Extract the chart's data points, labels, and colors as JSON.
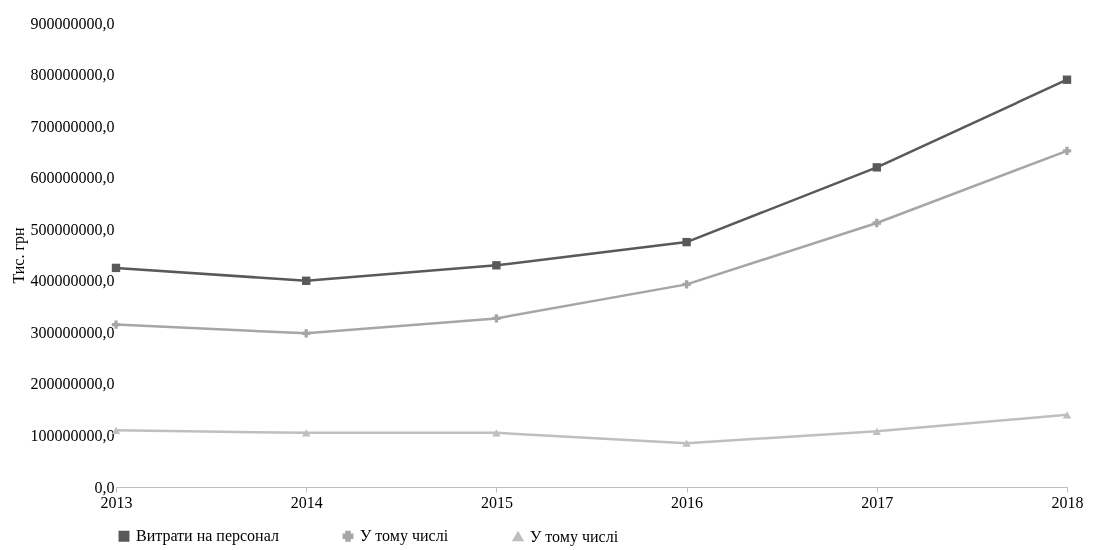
{
  "chart_data": {
    "type": "line",
    "ylabel": "Тис. грн",
    "categories": [
      "2013",
      "2014",
      "2015",
      "2016",
      "2017",
      "2018"
    ],
    "series": [
      {
        "name": "Витрати на персонал",
        "color": "#595959",
        "marker": "square",
        "values": [
          425000000,
          400000000,
          430000000,
          475000000,
          620000000,
          790000000
        ]
      },
      {
        "name": "У тому числі",
        "color": "#a6a6a6",
        "marker": "cross",
        "values": [
          315000000,
          298000000,
          327000000,
          393000000,
          512000000,
          652000000
        ]
      },
      {
        "name": "У тому числі",
        "color": "#bfbfbf",
        "marker": "triangle",
        "values": [
          110000000,
          105000000,
          105000000,
          85000000,
          108000000,
          140000000
        ]
      }
    ],
    "ylim": [
      0,
      900000000
    ],
    "yticks": [
      {
        "value": 0,
        "label": "0,0"
      },
      {
        "value": 100000000,
        "label": "100000000,0"
      },
      {
        "value": 200000000,
        "label": "200000000,0"
      },
      {
        "value": 300000000,
        "label": "300000000,0"
      },
      {
        "value": 400000000,
        "label": "400000000,0"
      },
      {
        "value": 500000000,
        "label": "500000000,0"
      },
      {
        "value": 600000000,
        "label": "600000000,0"
      },
      {
        "value": 700000000,
        "label": "700000000,0"
      },
      {
        "value": 800000000,
        "label": "800000000,0"
      },
      {
        "value": 900000000,
        "label": "900000000,0"
      }
    ],
    "grid": false,
    "legend": "bottom",
    "line_style": "solid"
  }
}
